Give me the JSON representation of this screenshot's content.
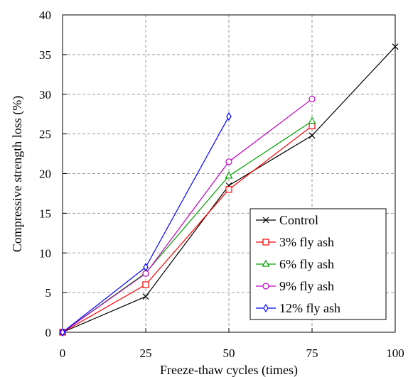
{
  "chart_data": {
    "type": "line",
    "xlabel": "Freeze-thaw cycles (times)",
    "ylabel": "Compressive strength loss (%)",
    "xlim": [
      0,
      100
    ],
    "ylim": [
      0,
      40
    ],
    "xticks": [
      0,
      25,
      50,
      75,
      100
    ],
    "yticks": [
      0,
      5,
      10,
      15,
      20,
      25,
      30,
      35,
      40
    ],
    "xtick_labels": [
      "0",
      "25",
      "50",
      "75",
      "100"
    ],
    "ytick_labels": [
      "0",
      "5",
      "10",
      "15",
      "20",
      "25",
      "30",
      "35",
      "40"
    ],
    "grid": true,
    "legend_position": "bottom-right",
    "series": [
      {
        "name": "Control",
        "color": "#000000",
        "marker": "x",
        "x": [
          0,
          25,
          50,
          75,
          100
        ],
        "y": [
          0,
          4.5,
          18.5,
          24.8,
          36.0
        ]
      },
      {
        "name": "3% fly ash",
        "color": "#ff0000",
        "marker": "square",
        "x": [
          0,
          25,
          50,
          75
        ],
        "y": [
          0,
          6.0,
          18.0,
          26.0
        ]
      },
      {
        "name": "6% fly ash",
        "color": "#00a000",
        "marker": "triangle",
        "x": [
          0,
          25,
          50,
          75
        ],
        "y": [
          0,
          7.5,
          19.7,
          26.6
        ]
      },
      {
        "name": "9% fly ash",
        "color": "#c000c0",
        "marker": "circle",
        "x": [
          0,
          25,
          50,
          75
        ],
        "y": [
          0,
          7.4,
          21.5,
          29.4
        ]
      },
      {
        "name": "12% fly ash",
        "color": "#0000ff",
        "marker": "diamond",
        "x": [
          0,
          25,
          50
        ],
        "y": [
          0,
          8.2,
          27.2
        ]
      }
    ]
  }
}
